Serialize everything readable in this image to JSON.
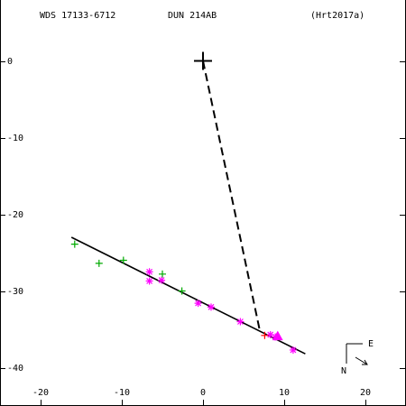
{
  "header": {
    "left": "WDS 17133-6712",
    "center": "DUN 214AB",
    "right": "(Hrt2017a)"
  },
  "compass": {
    "east": "E",
    "north": "N"
  },
  "colors": {
    "axis": "#000000",
    "green": "#00aa00",
    "magenta": "#ff00ff",
    "red": "#ff0000"
  },
  "chart_data": {
    "type": "scatter",
    "title": "",
    "xlabel": "",
    "ylabel": "",
    "xlim": [
      -25,
      25
    ],
    "ylim": [
      5,
      -45
    ],
    "x_ticks": [
      -20,
      -10,
      0,
      10,
      20
    ],
    "y_ticks": [
      0,
      -10,
      -20,
      -30,
      -40
    ],
    "primary": {
      "x": 0,
      "y": 0,
      "marker": "plus"
    },
    "orbit_line": {
      "from": [
        -16.2,
        -23
      ],
      "to": [
        12.6,
        -38.2
      ]
    },
    "dashed_line": {
      "from": [
        0,
        0
      ],
      "to": [
        7,
        -35.2
      ]
    },
    "series": [
      {
        "marker": "plus",
        "color": "green",
        "points": [
          [
            -15.8,
            -23.9
          ],
          [
            -12.8,
            -26.4
          ],
          [
            -9.8,
            -26.0
          ],
          [
            -5.0,
            -27.8
          ],
          [
            -2.6,
            -30.0
          ]
        ]
      },
      {
        "marker": "star",
        "color": "magenta",
        "points": [
          [
            -6.6,
            -27.5
          ],
          [
            -6.6,
            -28.7
          ],
          [
            -5.1,
            -28.6
          ],
          [
            -0.6,
            -31.6
          ],
          [
            1.0,
            -32.1
          ],
          [
            4.6,
            -34.0
          ],
          [
            8.3,
            -35.7
          ],
          [
            8.9,
            -36.0
          ],
          [
            11.1,
            -37.7
          ]
        ]
      },
      {
        "marker": "triangle",
        "color": "magenta",
        "points": [
          [
            9.2,
            -35.9
          ]
        ]
      },
      {
        "marker": "plus",
        "color": "red",
        "points": [
          [
            7.6,
            -35.8
          ]
        ]
      }
    ]
  }
}
